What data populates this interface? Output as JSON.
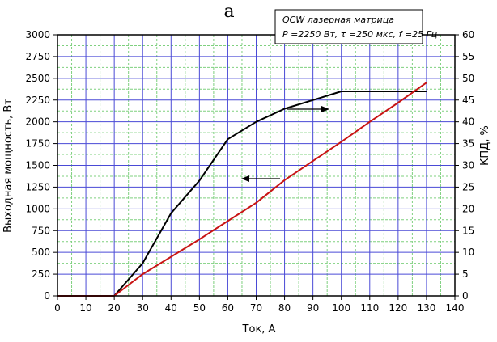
{
  "figure_letter": "a",
  "legend": {
    "line1": "QCW лазерная матрица",
    "line2": "P =2250 Вт, τ =250 мкс, f =25 Гц"
  },
  "chart_data": {
    "type": "line",
    "xlabel": "Ток, А",
    "ylabel_left": "Выходная мощность, Вт",
    "ylabel_right": "КПД, %",
    "xlim": [
      0,
      140
    ],
    "ylim_left": [
      0,
      3000
    ],
    "ylim_right": [
      0,
      60
    ],
    "x_ticks": [
      0,
      10,
      20,
      30,
      40,
      50,
      60,
      70,
      80,
      90,
      100,
      110,
      120,
      130,
      140
    ],
    "y_left_ticks": [
      0,
      250,
      500,
      750,
      1000,
      1250,
      1500,
      1750,
      2000,
      2250,
      2500,
      2750,
      3000
    ],
    "y_right_ticks": [
      0,
      5,
      10,
      15,
      20,
      25,
      30,
      35,
      40,
      45,
      50,
      55,
      60
    ],
    "grid": true,
    "major_grid_color": "#4a4ad6",
    "minor_grid_color": "#7fd07f",
    "series": [
      {
        "axis": "right",
        "color": "#000000",
        "x": [
          20,
          30,
          40,
          50,
          60,
          70,
          80,
          90,
          100,
          130
        ],
        "y": [
          0,
          7.5,
          19,
          26.5,
          36,
          40,
          43,
          45,
          47,
          47
        ]
      },
      {
        "axis": "left",
        "color": "#c81414",
        "x": [
          0,
          20,
          30,
          40,
          50,
          60,
          70,
          80,
          90,
          100,
          110,
          120,
          130
        ],
        "y": [
          0,
          0,
          250,
          450,
          650,
          860,
          1070,
          1330,
          1550,
          1770,
          2000,
          2220,
          2450
        ]
      }
    ]
  }
}
